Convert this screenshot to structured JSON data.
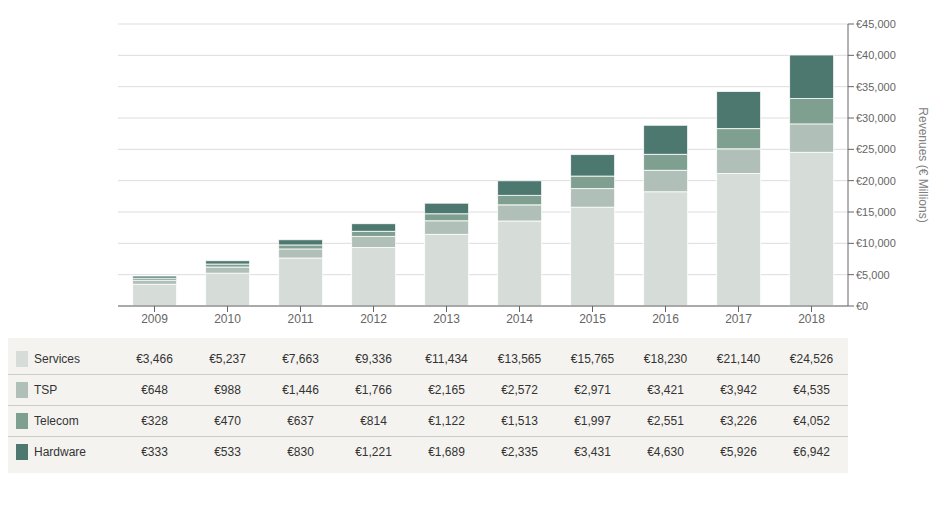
{
  "chart_data": {
    "type": "bar",
    "stacked": true,
    "grid": true,
    "categories": [
      "2009",
      "2010",
      "2011",
      "2012",
      "2013",
      "2014",
      "2015",
      "2016",
      "2017",
      "2018"
    ],
    "ylabel": "Revenues (€ Millions)",
    "ylim": [
      0,
      45000
    ],
    "yticks": [
      {
        "value": 0,
        "label": "€0"
      },
      {
        "value": 5000,
        "label": "€5,000"
      },
      {
        "value": 10000,
        "label": "€10,000"
      },
      {
        "value": 15000,
        "label": "€15,000"
      },
      {
        "value": 20000,
        "label": "€20,000"
      },
      {
        "value": 25000,
        "label": "€25,000"
      },
      {
        "value": 30000,
        "label": "€30,000"
      },
      {
        "value": 35000,
        "label": "€35,000"
      },
      {
        "value": 40000,
        "label": "€40,000"
      },
      {
        "value": 45000,
        "label": "€45,000"
      }
    ],
    "series": [
      {
        "name": "Services",
        "color": "#d6ddd8",
        "values": [
          3466,
          5237,
          7663,
          9336,
          11434,
          13565,
          15765,
          18230,
          21140,
          24526
        ],
        "value_labels": [
          "€3,466",
          "€5,237",
          "€7,663",
          "€9,336",
          "€11,434",
          "€13,565",
          "€15,765",
          "€18,230",
          "€21,140",
          "€24,526"
        ]
      },
      {
        "name": "TSP",
        "color": "#b0bfb8",
        "values": [
          648,
          988,
          1446,
          1766,
          2165,
          2572,
          2971,
          3421,
          3942,
          4535
        ],
        "value_labels": [
          "€648",
          "€988",
          "€1,446",
          "€1,766",
          "€2,165",
          "€2,572",
          "€2,971",
          "€3,421",
          "€3,942",
          "€4,535"
        ]
      },
      {
        "name": "Telecom",
        "color": "#7fa090",
        "values": [
          328,
          470,
          637,
          814,
          1122,
          1513,
          1997,
          2551,
          3226,
          4052
        ],
        "value_labels": [
          "€328",
          "€470",
          "€637",
          "€814",
          "€1,122",
          "€1,513",
          "€1,997",
          "€2,551",
          "€3,226",
          "€4,052"
        ]
      },
      {
        "name": "Hardware",
        "color": "#4d7870",
        "values": [
          333,
          533,
          830,
          1221,
          1689,
          2335,
          3431,
          4630,
          5926,
          6942
        ],
        "value_labels": [
          "€333",
          "€533",
          "€830",
          "€1,221",
          "€1,689",
          "€2,335",
          "€3,431",
          "€4,630",
          "€5,926",
          "€6,942"
        ]
      }
    ]
  }
}
